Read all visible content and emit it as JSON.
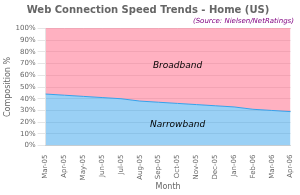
{
  "chart_data": {
    "type": "area",
    "title": "Web Connection Speed Trends - Home (US)",
    "subtitle": "(Source: Nielsen/NetRatings)",
    "x_label": "Month",
    "y_label": "Composition %",
    "categories": [
      "Mar-05",
      "Apr-05",
      "May-05",
      "Jun-05",
      "Jul-05",
      "Aug-05",
      "Sep-05",
      "Oct-05",
      "Nov-05",
      "Dec-05",
      "Jan-06",
      "Feb-06",
      "Mar-06",
      "Apr-06"
    ],
    "series": [
      {
        "name": "Narrowband",
        "values": [
          44,
          43,
          42,
          41,
          40,
          38,
          37,
          36,
          35,
          34,
          33,
          31,
          30,
          29
        ]
      },
      {
        "name": "Broadband",
        "values": [
          56,
          57,
          58,
          59,
          60,
          62,
          63,
          64,
          65,
          66,
          67,
          69,
          70,
          71
        ]
      }
    ],
    "stacked": true,
    "ylim": [
      0,
      100
    ],
    "yticks": [
      {
        "value": 0,
        "label": "0%"
      },
      {
        "value": 10,
        "label": "10%"
      },
      {
        "value": 20,
        "label": "20%"
      },
      {
        "value": 30,
        "label": "30%"
      },
      {
        "value": 40,
        "label": "40%"
      },
      {
        "value": 50,
        "label": "50%"
      },
      {
        "value": 60,
        "label": "60%"
      },
      {
        "value": 70,
        "label": "70%"
      },
      {
        "value": 80,
        "label": "80%"
      },
      {
        "value": 90,
        "label": "90%"
      },
      {
        "value": 100,
        "label": "100%"
      }
    ],
    "grid": "y"
  }
}
